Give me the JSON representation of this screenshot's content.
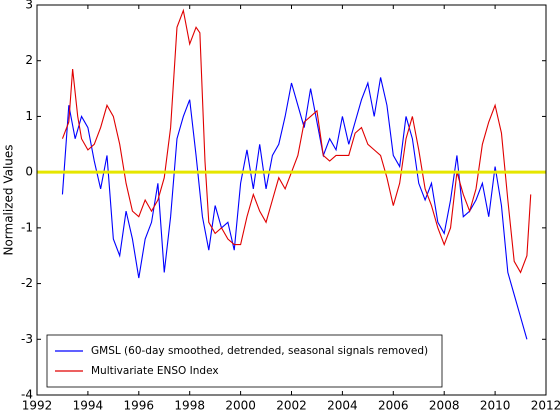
{
  "chart_data": {
    "type": "line",
    "ylabel": "Normalized Values",
    "xlim": [
      1992,
      2012
    ],
    "xticks": [
      1992,
      1994,
      1996,
      1998,
      2000,
      2002,
      2004,
      2006,
      2008,
      2010,
      2012
    ],
    "ylim": [
      -4,
      3
    ],
    "yticks": [
      -4,
      -3,
      -2,
      -1,
      0,
      1,
      2,
      3
    ],
    "legend": "lower left",
    "hlines": [
      {
        "value": 0,
        "color": "#e6e600"
      }
    ],
    "series": [
      {
        "name": "GMSL (60-day smoothed, detrended, seasonal signals removed)",
        "color": "#0000ff",
        "x": [
          1993.0,
          1993.25,
          1993.5,
          1993.75,
          1994.0,
          1994.25,
          1994.5,
          1994.75,
          1995.0,
          1995.25,
          1995.5,
          1995.75,
          1996.0,
          1996.25,
          1996.5,
          1996.75,
          1997.0,
          1997.25,
          1997.5,
          1997.75,
          1998.0,
          1998.25,
          1998.5,
          1998.75,
          1999.0,
          1999.25,
          1999.5,
          1999.75,
          2000.0,
          2000.25,
          2000.5,
          2000.75,
          2001.0,
          2001.25,
          2001.5,
          2001.75,
          2002.0,
          2002.25,
          2002.5,
          2002.75,
          2003.0,
          2003.25,
          2003.5,
          2003.75,
          2004.0,
          2004.25,
          2004.5,
          2004.75,
          2005.0,
          2005.25,
          2005.5,
          2005.75,
          2006.0,
          2006.25,
          2006.5,
          2006.75,
          2007.0,
          2007.25,
          2007.5,
          2007.75,
          2008.0,
          2008.25,
          2008.5,
          2008.75,
          2009.0,
          2009.25,
          2009.5,
          2009.75,
          2010.0,
          2010.25,
          2010.5,
          2010.75,
          2011.0,
          2011.25
        ],
        "values": [
          -0.4,
          1.2,
          0.6,
          1.0,
          0.8,
          0.2,
          -0.3,
          0.3,
          -1.2,
          -1.5,
          -0.7,
          -1.2,
          -1.9,
          -1.2,
          -0.9,
          -0.2,
          -1.8,
          -0.8,
          0.6,
          1.0,
          1.3,
          0.3,
          -0.8,
          -1.4,
          -0.6,
          -1.0,
          -0.9,
          -1.4,
          -0.2,
          0.4,
          -0.3,
          0.5,
          -0.3,
          0.3,
          0.5,
          1.0,
          1.6,
          1.2,
          0.8,
          1.5,
          0.9,
          0.3,
          0.6,
          0.4,
          1.0,
          0.5,
          0.9,
          1.3,
          1.6,
          1.0,
          1.7,
          1.2,
          0.3,
          0.1,
          1.0,
          0.6,
          -0.2,
          -0.5,
          -0.2,
          -0.9,
          -1.1,
          -0.5,
          0.3,
          -0.8,
          -0.7,
          -0.5,
          -0.2,
          -0.8,
          0.1,
          -0.6,
          -1.8,
          -2.2,
          -2.6,
          -3.0
        ]
      },
      {
        "name": "Multivariate ENSO Index",
        "color": "#e00000",
        "x": [
          1993.0,
          1993.25,
          1993.4,
          1993.6,
          1993.75,
          1994.0,
          1994.25,
          1994.5,
          1994.75,
          1995.0,
          1995.25,
          1995.5,
          1995.75,
          1996.0,
          1996.25,
          1996.5,
          1996.75,
          1997.0,
          1997.25,
          1997.5,
          1997.75,
          1998.0,
          1998.25,
          1998.4,
          1998.6,
          1998.75,
          1999.0,
          1999.25,
          1999.5,
          1999.75,
          2000.0,
          2000.25,
          2000.5,
          2000.75,
          2001.0,
          2001.25,
          2001.5,
          2001.75,
          2002.0,
          2002.25,
          2002.5,
          2002.75,
          2003.0,
          2003.25,
          2003.5,
          2003.75,
          2004.0,
          2004.25,
          2004.5,
          2004.75,
          2005.0,
          2005.25,
          2005.5,
          2005.75,
          2006.0,
          2006.25,
          2006.5,
          2006.75,
          2007.0,
          2007.25,
          2007.5,
          2007.75,
          2008.0,
          2008.25,
          2008.5,
          2008.75,
          2009.0,
          2009.25,
          2009.5,
          2009.75,
          2010.0,
          2010.25,
          2010.5,
          2010.75,
          2011.0,
          2011.25,
          2011.4
        ],
        "values": [
          0.6,
          0.9,
          1.85,
          1.0,
          0.6,
          0.4,
          0.5,
          0.8,
          1.2,
          1.0,
          0.5,
          -0.2,
          -0.7,
          -0.8,
          -0.5,
          -0.7,
          -0.5,
          -0.1,
          0.8,
          2.6,
          2.9,
          2.3,
          2.6,
          2.5,
          0.2,
          -0.9,
          -1.1,
          -1.0,
          -1.2,
          -1.3,
          -1.3,
          -0.8,
          -0.4,
          -0.7,
          -0.9,
          -0.5,
          -0.1,
          -0.3,
          0.0,
          0.3,
          0.9,
          1.0,
          1.1,
          0.3,
          0.2,
          0.3,
          0.3,
          0.3,
          0.7,
          0.8,
          0.5,
          0.4,
          0.3,
          -0.1,
          -0.6,
          -0.2,
          0.6,
          1.0,
          0.4,
          -0.3,
          -0.6,
          -1.0,
          -1.3,
          -1.0,
          0.0,
          -0.4,
          -0.7,
          -0.3,
          0.5,
          0.9,
          1.2,
          0.7,
          -0.5,
          -1.6,
          -1.8,
          -1.5,
          -0.4
        ]
      }
    ]
  }
}
